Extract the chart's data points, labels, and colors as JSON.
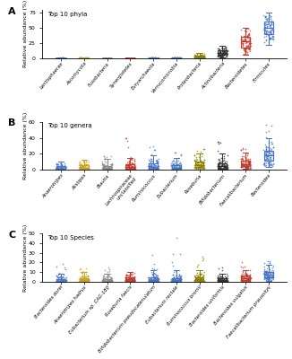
{
  "panel_A": {
    "title": "Top 10 phyla",
    "ylabel": "Relative abundance (%)",
    "ylim": [
      0,
      80
    ],
    "yticks": [
      0,
      25,
      50,
      75
    ],
    "categories": [
      "Lentisphaerae",
      "Ascomycota",
      "Fusobacteria",
      "Synergistetes",
      "Euryarchaeota",
      "Verrucomicrobia",
      "Proteobacteria",
      "Actinobacteria",
      "Bacteroidetes",
      "Firmicutes"
    ],
    "colors": [
      "#4472C4",
      "#C8A020",
      "#888888",
      "#C0392B",
      "#4472C4",
      "#4472C4",
      "#8B8000",
      "#303030",
      "#C0392B",
      "#4472C4"
    ],
    "medians": [
      0.05,
      0.1,
      0.05,
      0.03,
      0.05,
      0.1,
      1.5,
      8.0,
      28.0,
      50.0
    ],
    "q1": [
      0.01,
      0.03,
      0.01,
      0.01,
      0.02,
      0.03,
      0.5,
      5.0,
      18.0,
      40.0
    ],
    "q3": [
      0.15,
      0.3,
      0.1,
      0.08,
      0.15,
      0.3,
      3.5,
      13.0,
      35.0,
      60.0
    ],
    "whisker_low": [
      0.0,
      0.0,
      0.0,
      0.0,
      0.0,
      0.0,
      0.0,
      1.5,
      6.0,
      22.0
    ],
    "whisker_high": [
      0.5,
      0.8,
      0.4,
      0.3,
      0.5,
      0.8,
      8.0,
      20.0,
      50.0,
      75.0
    ],
    "outliers_high": [
      0.0,
      0.0,
      0.0,
      0.0,
      1.5,
      0.0,
      0.0,
      0.0,
      0.0,
      0.0
    ]
  },
  "panel_B": {
    "title": "Top 10 genera",
    "ylabel": "Relative abundance (%)",
    "ylim": [
      0,
      60
    ],
    "yticks": [
      0,
      20,
      40,
      60
    ],
    "categories": [
      "Anaerotripes",
      "Alistipes",
      "Blautia",
      "Lachnospiraceae\nunclassified",
      "Ruminococcus",
      "Eubacterium",
      "Roseburia",
      "Bifidobacterium",
      "Faecalibacterium",
      "Bacteroides"
    ],
    "colors": [
      "#4472C4",
      "#C8A020",
      "#888888",
      "#C0392B",
      "#4472C4",
      "#4472C4",
      "#8B8000",
      "#303030",
      "#C0392B",
      "#4472C4"
    ],
    "medians": [
      2.0,
      3.0,
      2.5,
      3.5,
      4.0,
      3.0,
      6.0,
      4.5,
      7.0,
      18.0
    ],
    "q1": [
      0.8,
      1.2,
      1.0,
      1.5,
      2.0,
      1.5,
      3.5,
      2.0,
      4.5,
      12.0
    ],
    "q3": [
      4.5,
      6.0,
      5.0,
      7.0,
      8.0,
      6.0,
      10.0,
      8.0,
      11.0,
      24.0
    ],
    "whisker_low": [
      0.0,
      0.0,
      0.0,
      0.0,
      0.0,
      0.0,
      0.5,
      0.0,
      1.0,
      4.0
    ],
    "whisker_high": [
      10.0,
      13.0,
      14.0,
      15.0,
      18.0,
      15.0,
      20.0,
      20.0,
      22.0,
      40.0
    ],
    "outliers_high": [
      0.0,
      0.0,
      18.0,
      48.0,
      30.0,
      22.0,
      28.0,
      36.0,
      28.0,
      57.0
    ]
  },
  "panel_C": {
    "title": "Top 10 Species",
    "ylabel": "Relative abundance (%)",
    "ylim": [
      0,
      50
    ],
    "yticks": [
      0,
      10,
      20,
      30,
      40,
      50
    ],
    "categories": [
      "Bacteroides dorei",
      "Anaerotripes hadrus",
      "Eubacterium sp. CAG-180",
      "Roseburia faecis",
      "Bifidobacterium pseudocatenulatum",
      "Eubacterium rectale",
      "Ruminococcus bromii",
      "Bacteroides uniformis",
      "Bacteroides vulgatus",
      "Faecalibacterium prausnitzii"
    ],
    "colors": [
      "#4472C4",
      "#C8A020",
      "#888888",
      "#C0392B",
      "#4472C4",
      "#4472C4",
      "#8B8000",
      "#303030",
      "#C0392B",
      "#4472C4"
    ],
    "medians": [
      1.0,
      2.0,
      1.2,
      2.5,
      2.0,
      2.0,
      3.0,
      1.5,
      3.5,
      7.0
    ],
    "q1": [
      0.3,
      0.8,
      0.5,
      1.2,
      0.8,
      0.8,
      1.5,
      0.5,
      1.8,
      4.5
    ],
    "q3": [
      3.0,
      4.0,
      2.8,
      5.0,
      4.5,
      4.0,
      5.0,
      3.5,
      6.0,
      10.0
    ],
    "whisker_low": [
      0.0,
      0.0,
      0.0,
      0.0,
      0.0,
      0.0,
      0.0,
      0.0,
      0.0,
      1.0
    ],
    "whisker_high": [
      8.0,
      10.0,
      8.0,
      10.0,
      12.0,
      12.0,
      12.0,
      8.0,
      12.0,
      18.0
    ],
    "outliers_high": [
      25.0,
      15.0,
      20.0,
      0.0,
      28.0,
      48.0,
      26.0,
      18.0,
      22.0,
      22.0
    ]
  },
  "panel_labels": [
    "A",
    "B",
    "C"
  ],
  "bg_color": "#ffffff",
  "n_samples": 100
}
